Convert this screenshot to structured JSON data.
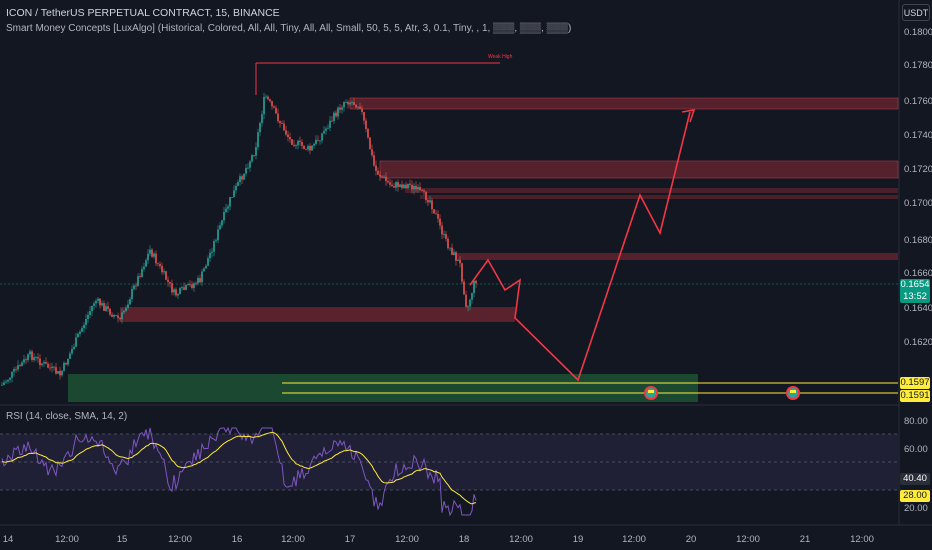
{
  "header": {
    "symbol_line": "ICON / TetherUS PERPETUAL CONTRACT, 15, BINANCE",
    "indicator_line": "Smart Money Concepts [LuxAlgo] (Historical, Colored, All, All, Tiny, All, All, Small, 50, 5, 5, Atr, 3, 0.1, Tiny, , 1, ▒▒▒, ▒▒▒, ▒▒▒)"
  },
  "currency": "USDT",
  "price_axis": [
    "0.1800",
    "0.1780",
    "0.1760",
    "0.1740",
    "0.1720",
    "0.1700",
    "0.1680",
    "0.1660",
    "0.1640",
    "0.1620"
  ],
  "price_tags": {
    "current_price": "0.1654",
    "countdown": "13:52",
    "level_1": "0.1597",
    "level_2": "0.1591"
  },
  "chart_labels": {
    "weak_high": "Weak High"
  },
  "rsi": {
    "label": "RSI (14, close, SMA, 14, 2)",
    "axis": [
      "80.00",
      "60.00",
      "20.00"
    ],
    "value": "40.40",
    "sma_value": "28.00"
  },
  "time_axis": [
    "14",
    "12:00",
    "15",
    "12:00",
    "16",
    "12:00",
    "17",
    "12:00",
    "18",
    "12:00",
    "19",
    "12:00",
    "20",
    "12:00",
    "21",
    "12:00"
  ],
  "colors": {
    "background": "#131722",
    "bull": "#26a69a",
    "bear": "#ef5350",
    "zone_red": "#8b2a35",
    "zone_green": "#1e5a37",
    "projection": "#f23645",
    "level_yellow": "#ffeb3b",
    "rsi_line": "#7e57c2",
    "rsi_sma": "#ffeb3b"
  },
  "icons": [
    "flag-marker-icon",
    "flag-marker-icon"
  ]
}
